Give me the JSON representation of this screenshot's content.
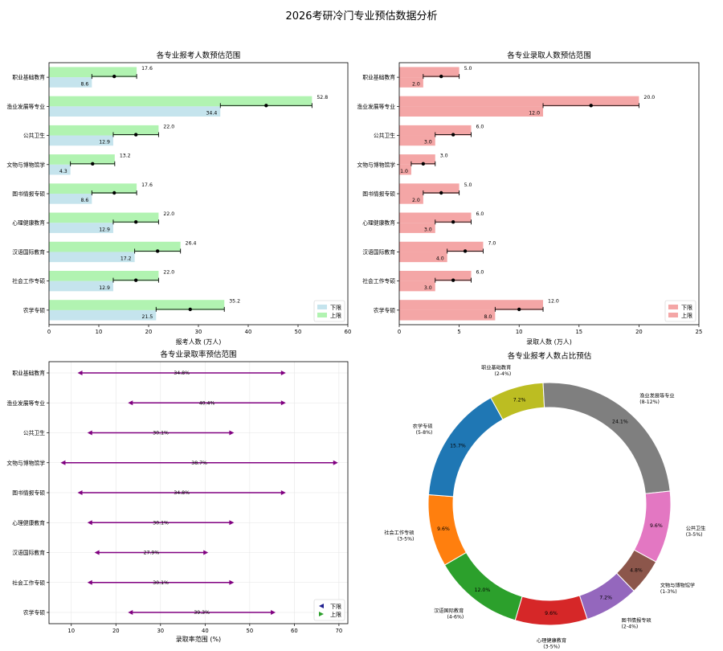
{
  "title": "2026考研冷门专业预估数据分析",
  "categories": [
    "职业基础教育",
    "渔业发展等专业",
    "公共卫生",
    "文物与博物馆学",
    "图书情报专硕",
    "心理健康教育",
    "汉语国际教育",
    "社会工作专硕",
    "农学专硕"
  ],
  "colors": {
    "lower_applicants": "#add8e6",
    "upper_applicants": "#90ee90",
    "lower_admission": "#f08080",
    "upper_admission": "#f08080",
    "arrow": "#800080",
    "point": "#000000",
    "pie": [
      "#bcbd22",
      "#7f7f7f",
      "#e377c2",
      "#8c564b",
      "#9467bd",
      "#d62728",
      "#2ca02c",
      "#ff7f0e",
      "#1f77b4"
    ]
  },
  "chart_data": [
    {
      "type": "bar",
      "orientation": "horizontal",
      "title": "各专业报考人数预估范围",
      "xlabel": "报考人数 (万人)",
      "xlim": [
        0,
        60
      ],
      "xticks": [
        0,
        10,
        20,
        30,
        40,
        50,
        60
      ],
      "legend_loc": "lower-right",
      "series": [
        {
          "name": "下限",
          "values": [
            8.6,
            34.4,
            12.9,
            4.3,
            8.6,
            12.9,
            17.2,
            12.9,
            21.5
          ]
        },
        {
          "name": "上限",
          "values": [
            17.6,
            52.8,
            22.0,
            13.2,
            17.6,
            22.0,
            26.4,
            22.0,
            35.2
          ]
        }
      ],
      "labels_lower": [
        "8.6",
        "34.4",
        "12.9",
        "4.3",
        "8.6",
        "12.9",
        "17.2",
        "12.9",
        "21.5"
      ],
      "labels_upper": [
        "17.6",
        "52.8",
        "22.0",
        "13.2",
        "17.6",
        "22.0",
        "26.4",
        "22.0",
        "35.2"
      ],
      "midpoints": [
        13.1,
        43.6,
        17.45,
        8.75,
        13.1,
        17.45,
        21.8,
        17.45,
        28.35
      ]
    },
    {
      "type": "bar",
      "orientation": "horizontal",
      "title": "各专业录取人数预估范围",
      "xlabel": "录取人数 (万人)",
      "xlim": [
        0,
        25
      ],
      "xticks": [
        0,
        5,
        10,
        15,
        20,
        25
      ],
      "legend_loc": "lower-right",
      "series": [
        {
          "name": "下限",
          "values": [
            2.0,
            12.0,
            3.0,
            1.0,
            2.0,
            3.0,
            4.0,
            3.0,
            8.0
          ]
        },
        {
          "name": "上限",
          "values": [
            5.0,
            20.0,
            6.0,
            3.0,
            5.0,
            6.0,
            7.0,
            6.0,
            12.0
          ]
        }
      ],
      "labels_lower": [
        "2.0",
        "12.0",
        "3.0",
        "1.0",
        "2.0",
        "3.0",
        "4.0",
        "3.0",
        "8.0"
      ],
      "labels_upper": [
        "5.0",
        "20.0",
        "6.0",
        "3.0",
        "5.0",
        "6.0",
        "7.0",
        "6.0",
        "12.0"
      ],
      "midpoints": [
        3.5,
        16.0,
        4.5,
        2.0,
        3.5,
        4.5,
        5.5,
        4.5,
        10.0
      ]
    },
    {
      "type": "range",
      "title": "各专业录取率预估范围",
      "xlabel": "录取率范围 (%)",
      "xlim": [
        5,
        72
      ],
      "xticks": [
        10,
        20,
        30,
        40,
        50,
        60,
        70
      ],
      "grid": true,
      "legend_loc": "lower-right",
      "series": [
        {
          "name": "下限",
          "values": [
            11.4,
            22.7,
            13.6,
            7.6,
            11.4,
            13.6,
            15.2,
            13.6,
            22.7
          ]
        },
        {
          "name": "上限",
          "values": [
            58.1,
            58.1,
            46.5,
            69.8,
            58.1,
            46.5,
            40.7,
            46.5,
            55.8
          ]
        }
      ],
      "labels": [
        "34.8%",
        "40.4%",
        "30.1%",
        "38.7%",
        "34.8%",
        "30.1%",
        "27.9%",
        "30.1%",
        "39.3%"
      ]
    },
    {
      "type": "pie",
      "donut": true,
      "title": "各专业报考人数占比预估",
      "slices": [
        {
          "label": "职业基础教育",
          "range": "(2-4%)",
          "value": 7.2,
          "pct": "7.2%"
        },
        {
          "label": "渔业发展等专业",
          "range": "(8-12%)",
          "value": 24.1,
          "pct": "24.1%"
        },
        {
          "label": "公共卫生",
          "range": "(3-5%)",
          "value": 9.6,
          "pct": "9.6%"
        },
        {
          "label": "文物与博物馆学",
          "range": "(1-3%)",
          "value": 4.8,
          "pct": "4.8%"
        },
        {
          "label": "图书情报专硕",
          "range": "(2-4%)",
          "value": 7.2,
          "pct": "7.2%"
        },
        {
          "label": "心理健康教育",
          "range": "(3-5%)",
          "value": 9.6,
          "pct": "9.6%"
        },
        {
          "label": "汉语国际教育",
          "range": "(4-6%)",
          "value": 12.0,
          "pct": "12.0%"
        },
        {
          "label": "社会工作专硕",
          "range": "(3-5%)",
          "value": 9.6,
          "pct": "9.6%"
        },
        {
          "label": "农学专硕",
          "range": "(5-8%)",
          "value": 15.7,
          "pct": "15.7%"
        }
      ]
    }
  ]
}
